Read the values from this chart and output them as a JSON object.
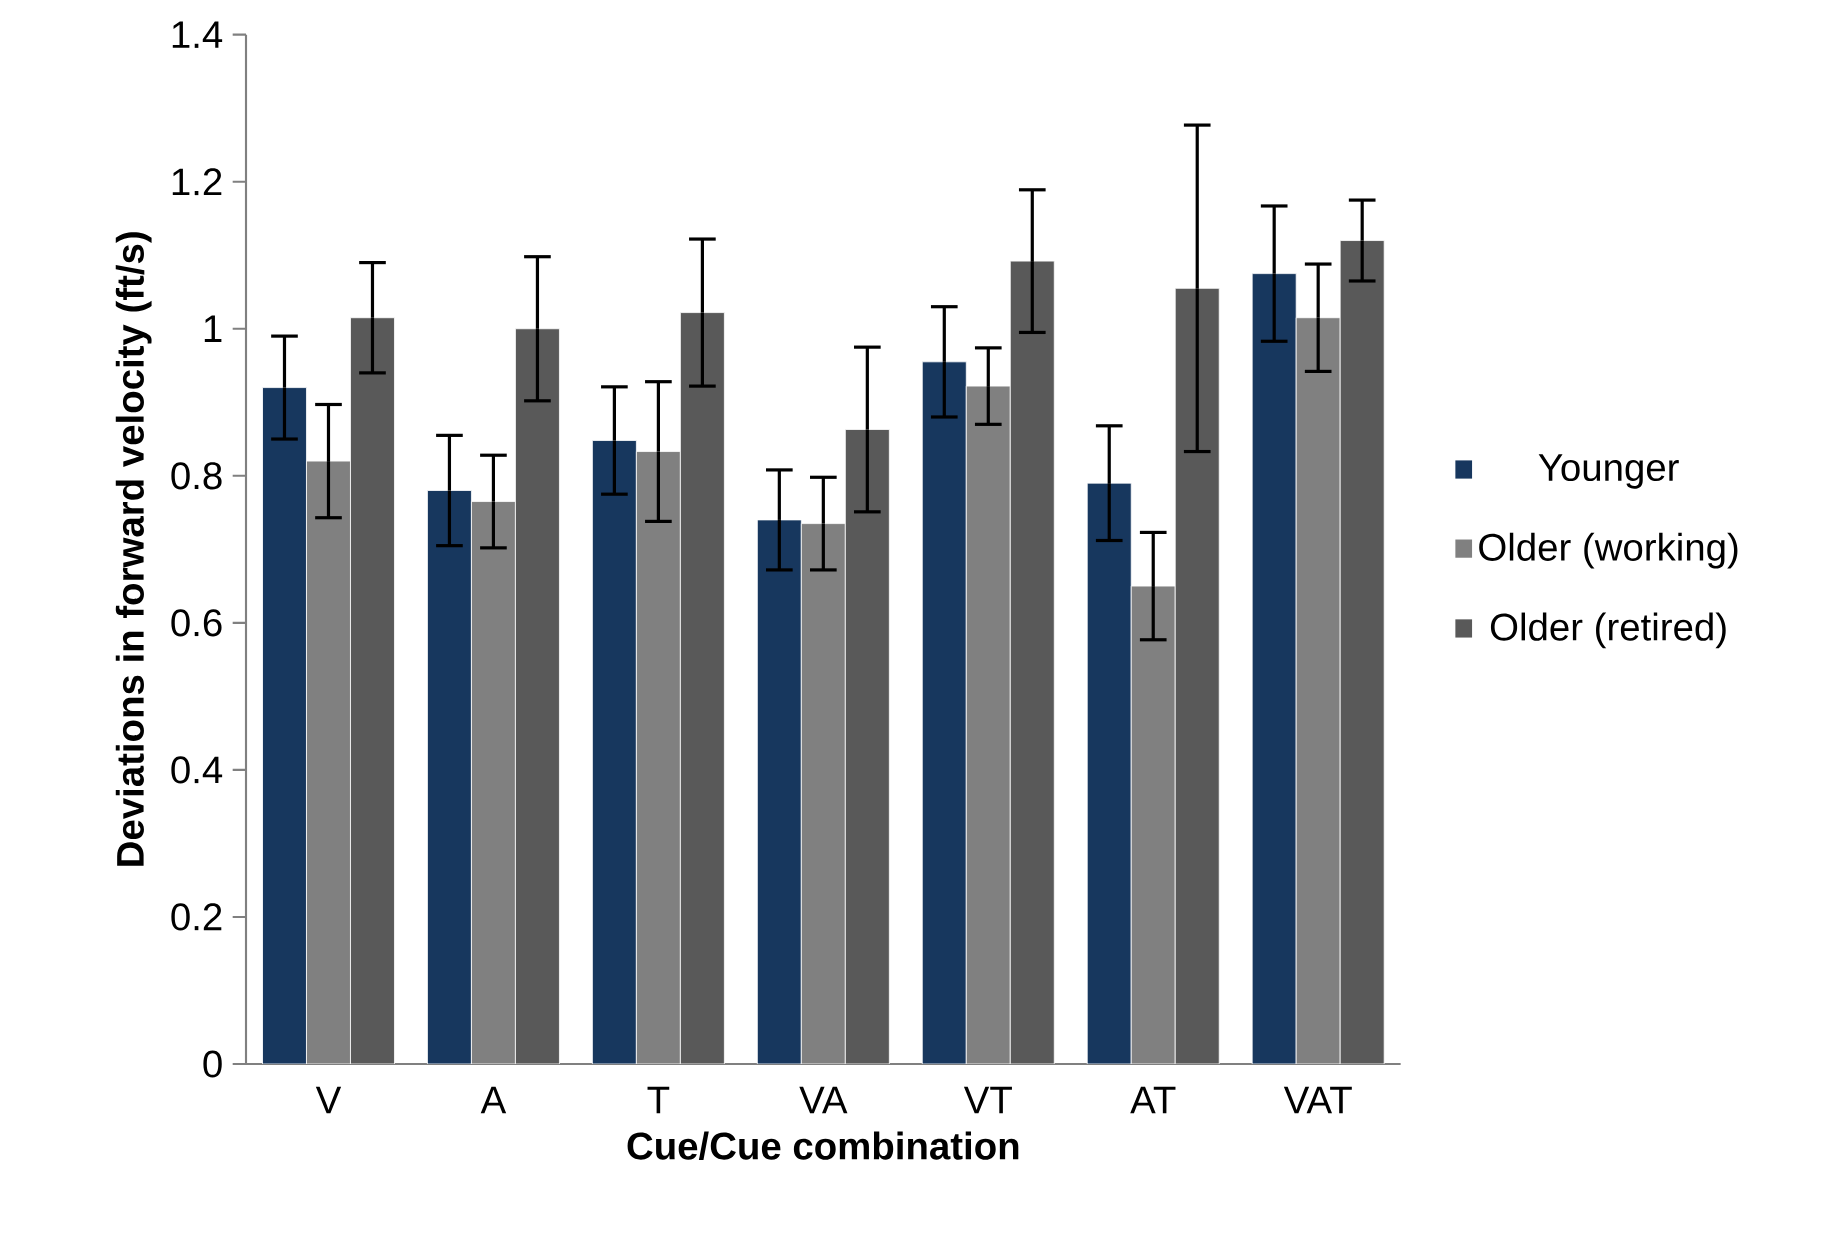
{
  "chart_data": {
    "type": "bar",
    "xlabel": "Cue/Cue combination",
    "ylabel": "Deviations in forward velocity (ft/s)",
    "categories": [
      "V",
      "A",
      "T",
      "VA",
      "VT",
      "AT",
      "VAT"
    ],
    "series": [
      {
        "name": "Younger",
        "color": "#17375e",
        "values": [
          0.92,
          0.78,
          0.848,
          0.74,
          0.955,
          0.79,
          1.075
        ],
        "errors": [
          0.07,
          0.075,
          0.073,
          0.068,
          0.075,
          0.078,
          0.092
        ]
      },
      {
        "name": "Older (working)",
        "color": "#808080",
        "values": [
          0.82,
          0.765,
          0.833,
          0.735,
          0.922,
          0.65,
          1.015
        ],
        "errors": [
          0.077,
          0.063,
          0.095,
          0.063,
          0.052,
          0.073,
          0.073
        ]
      },
      {
        "name": "Older (retired)",
        "color": "#595959",
        "values": [
          1.015,
          1.0,
          1.022,
          0.863,
          1.092,
          1.055,
          1.12
        ],
        "errors": [
          0.075,
          0.098,
          0.1,
          0.112,
          0.097,
          0.222,
          0.055
        ]
      }
    ],
    "ylim": [
      0,
      1.4
    ],
    "yticks": [
      0,
      0.2,
      0.4,
      0.6,
      0.8,
      1,
      1.2,
      1.4
    ],
    "legend": "right"
  }
}
